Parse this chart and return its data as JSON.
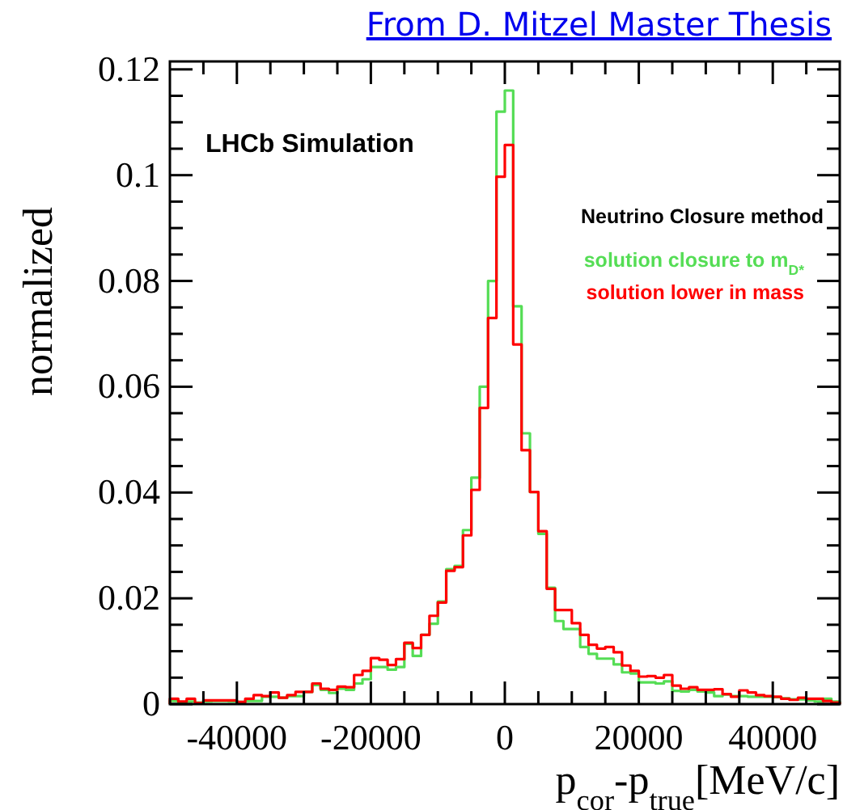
{
  "chart_data": {
    "type": "histogram",
    "title": "From D. Mitzel Master Thesis",
    "xlabel": "p$_{cor}$-p$_{true}$[MeV/c]",
    "ylabel": "normalized",
    "legend_title": "Neutrino Closure method",
    "annotations": [
      "LHCb Simulation"
    ],
    "bins": [
      -50000,
      -48750,
      -47500,
      -46250,
      -45000,
      -43750,
      -42500,
      -41250,
      -40000,
      -38750,
      -37500,
      -36250,
      -35000,
      -33750,
      -32500,
      -31250,
      -30000,
      -28750,
      -27500,
      -26250,
      -25000,
      -23750,
      -22500,
      -21250,
      -20000,
      -18750,
      -17500,
      -16250,
      -15000,
      -13750,
      -12500,
      -11250,
      -10000,
      -8750,
      -7500,
      -6250,
      -5000,
      -3750,
      -2500,
      -1250,
      0,
      1250,
      2500,
      3750,
      5000,
      6250,
      7500,
      8750,
      10000,
      11250,
      12500,
      13750,
      15000,
      16250,
      17500,
      18750,
      20000,
      21250,
      22500,
      23750,
      25000,
      26250,
      27500,
      28750,
      30000,
      31250,
      32500,
      33750,
      35000,
      36250,
      37500,
      38750,
      40000,
      41250,
      42500,
      43750,
      45000,
      46250,
      47500,
      48750,
      50000
    ],
    "series": [
      {
        "name": "solution closure to m$_{D*}$",
        "color": "#55dd55",
        "values": [
          0.0006,
          0.0004,
          0.0005,
          0.0003,
          0.0005,
          0.0006,
          0.0006,
          0.0005,
          0.0004,
          0.0006,
          0.0006,
          0.0014,
          0.0014,
          0.0012,
          0.0015,
          0.0015,
          0.0023,
          0.0036,
          0.0027,
          0.0021,
          0.0029,
          0.0027,
          0.0039,
          0.0047,
          0.007,
          0.007,
          0.0065,
          0.007,
          0.0114,
          0.0091,
          0.0131,
          0.0152,
          0.0194,
          0.0255,
          0.0261,
          0.0329,
          0.0428,
          0.06,
          0.08,
          0.112,
          0.116,
          0.0752,
          0.0512,
          0.0401,
          0.0322,
          0.022,
          0.0157,
          0.0142,
          0.0142,
          0.0108,
          0.0095,
          0.0086,
          0.0086,
          0.0075,
          0.006,
          0.0058,
          0.0041,
          0.0041,
          0.0039,
          0.0043,
          0.0025,
          0.0024,
          0.0027,
          0.0024,
          0.0022,
          0.0015,
          0.0018,
          0.0015,
          0.0015,
          0.0014,
          0.0014,
          0.0014,
          0.0013,
          0.0011,
          0.0009,
          0.0009,
          0.0007,
          0.0005,
          0.001,
          0.0005
        ]
      },
      {
        "name": "solution lower in mass",
        "color": "#ff0000",
        "values": [
          0.001,
          0.0005,
          0.001,
          0.0002,
          0.0007,
          0.0007,
          0.0007,
          0.0007,
          0.0004,
          0.001,
          0.0017,
          0.0015,
          0.0022,
          0.0012,
          0.0017,
          0.0023,
          0.0023,
          0.0039,
          0.0029,
          0.0027,
          0.0033,
          0.0032,
          0.0055,
          0.0063,
          0.0087,
          0.0084,
          0.0074,
          0.0085,
          0.0116,
          0.0106,
          0.0131,
          0.0167,
          0.0192,
          0.0252,
          0.0259,
          0.0319,
          0.0405,
          0.056,
          0.073,
          0.0997,
          0.1057,
          0.068,
          0.048,
          0.0401,
          0.0327,
          0.0218,
          0.0178,
          0.0178,
          0.0153,
          0.0131,
          0.0112,
          0.0105,
          0.0108,
          0.0098,
          0.0073,
          0.0063,
          0.0052,
          0.0053,
          0.005,
          0.0055,
          0.0035,
          0.0029,
          0.0032,
          0.0027,
          0.0027,
          0.0028,
          0.0019,
          0.0014,
          0.0026,
          0.0022,
          0.0017,
          0.0015,
          0.0014,
          0.001,
          0.0008,
          0.0012,
          0.001,
          0.001,
          0.0006,
          0.0003
        ]
      }
    ],
    "xlim": [
      -50000,
      50000
    ],
    "xticks": [
      {
        "value": -45000,
        "label": null
      },
      -40000,
      {
        "value": -35000,
        "label": null
      },
      {
        "value": -30000,
        "label": null
      },
      {
        "value": -25000,
        "label": null
      },
      -20000,
      {
        "value": -15000,
        "label": null
      },
      {
        "value": -10000,
        "label": null
      },
      {
        "value": -5000,
        "label": null
      },
      0,
      {
        "value": 5000,
        "label": null
      },
      {
        "value": 10000,
        "label": null
      },
      {
        "value": 15000,
        "label": null
      },
      20000,
      {
        "value": 25000,
        "label": null
      },
      {
        "value": 30000,
        "label": null
      },
      {
        "value": 35000,
        "label": null
      },
      40000,
      {
        "value": 45000,
        "label": null
      }
    ],
    "ylim": [
      0,
      0.1215
    ],
    "yticks": [
      0,
      {
        "value": 0.005,
        "label": null
      },
      {
        "value": 0.01,
        "label": null
      },
      {
        "value": 0.015,
        "label": null
      },
      0.02,
      {
        "value": 0.025,
        "label": null
      },
      {
        "value": 0.03,
        "label": null
      },
      {
        "value": 0.035,
        "label": null
      },
      0.04,
      {
        "value": 0.045,
        "label": null
      },
      {
        "value": 0.05,
        "label": null
      },
      {
        "value": 0.055,
        "label": null
      },
      0.06,
      {
        "value": 0.065,
        "label": null
      },
      {
        "value": 0.07,
        "label": null
      },
      {
        "value": 0.075,
        "label": null
      },
      0.08,
      {
        "value": 0.085,
        "label": null
      },
      {
        "value": 0.09,
        "label": null
      },
      {
        "value": 0.095,
        "label": null
      },
      0.1,
      {
        "value": 0.105,
        "label": null
      },
      {
        "value": 0.11,
        "label": null
      },
      {
        "value": 0.115,
        "label": null
      },
      0.12
    ],
    "legend": "top right",
    "grid": false
  }
}
